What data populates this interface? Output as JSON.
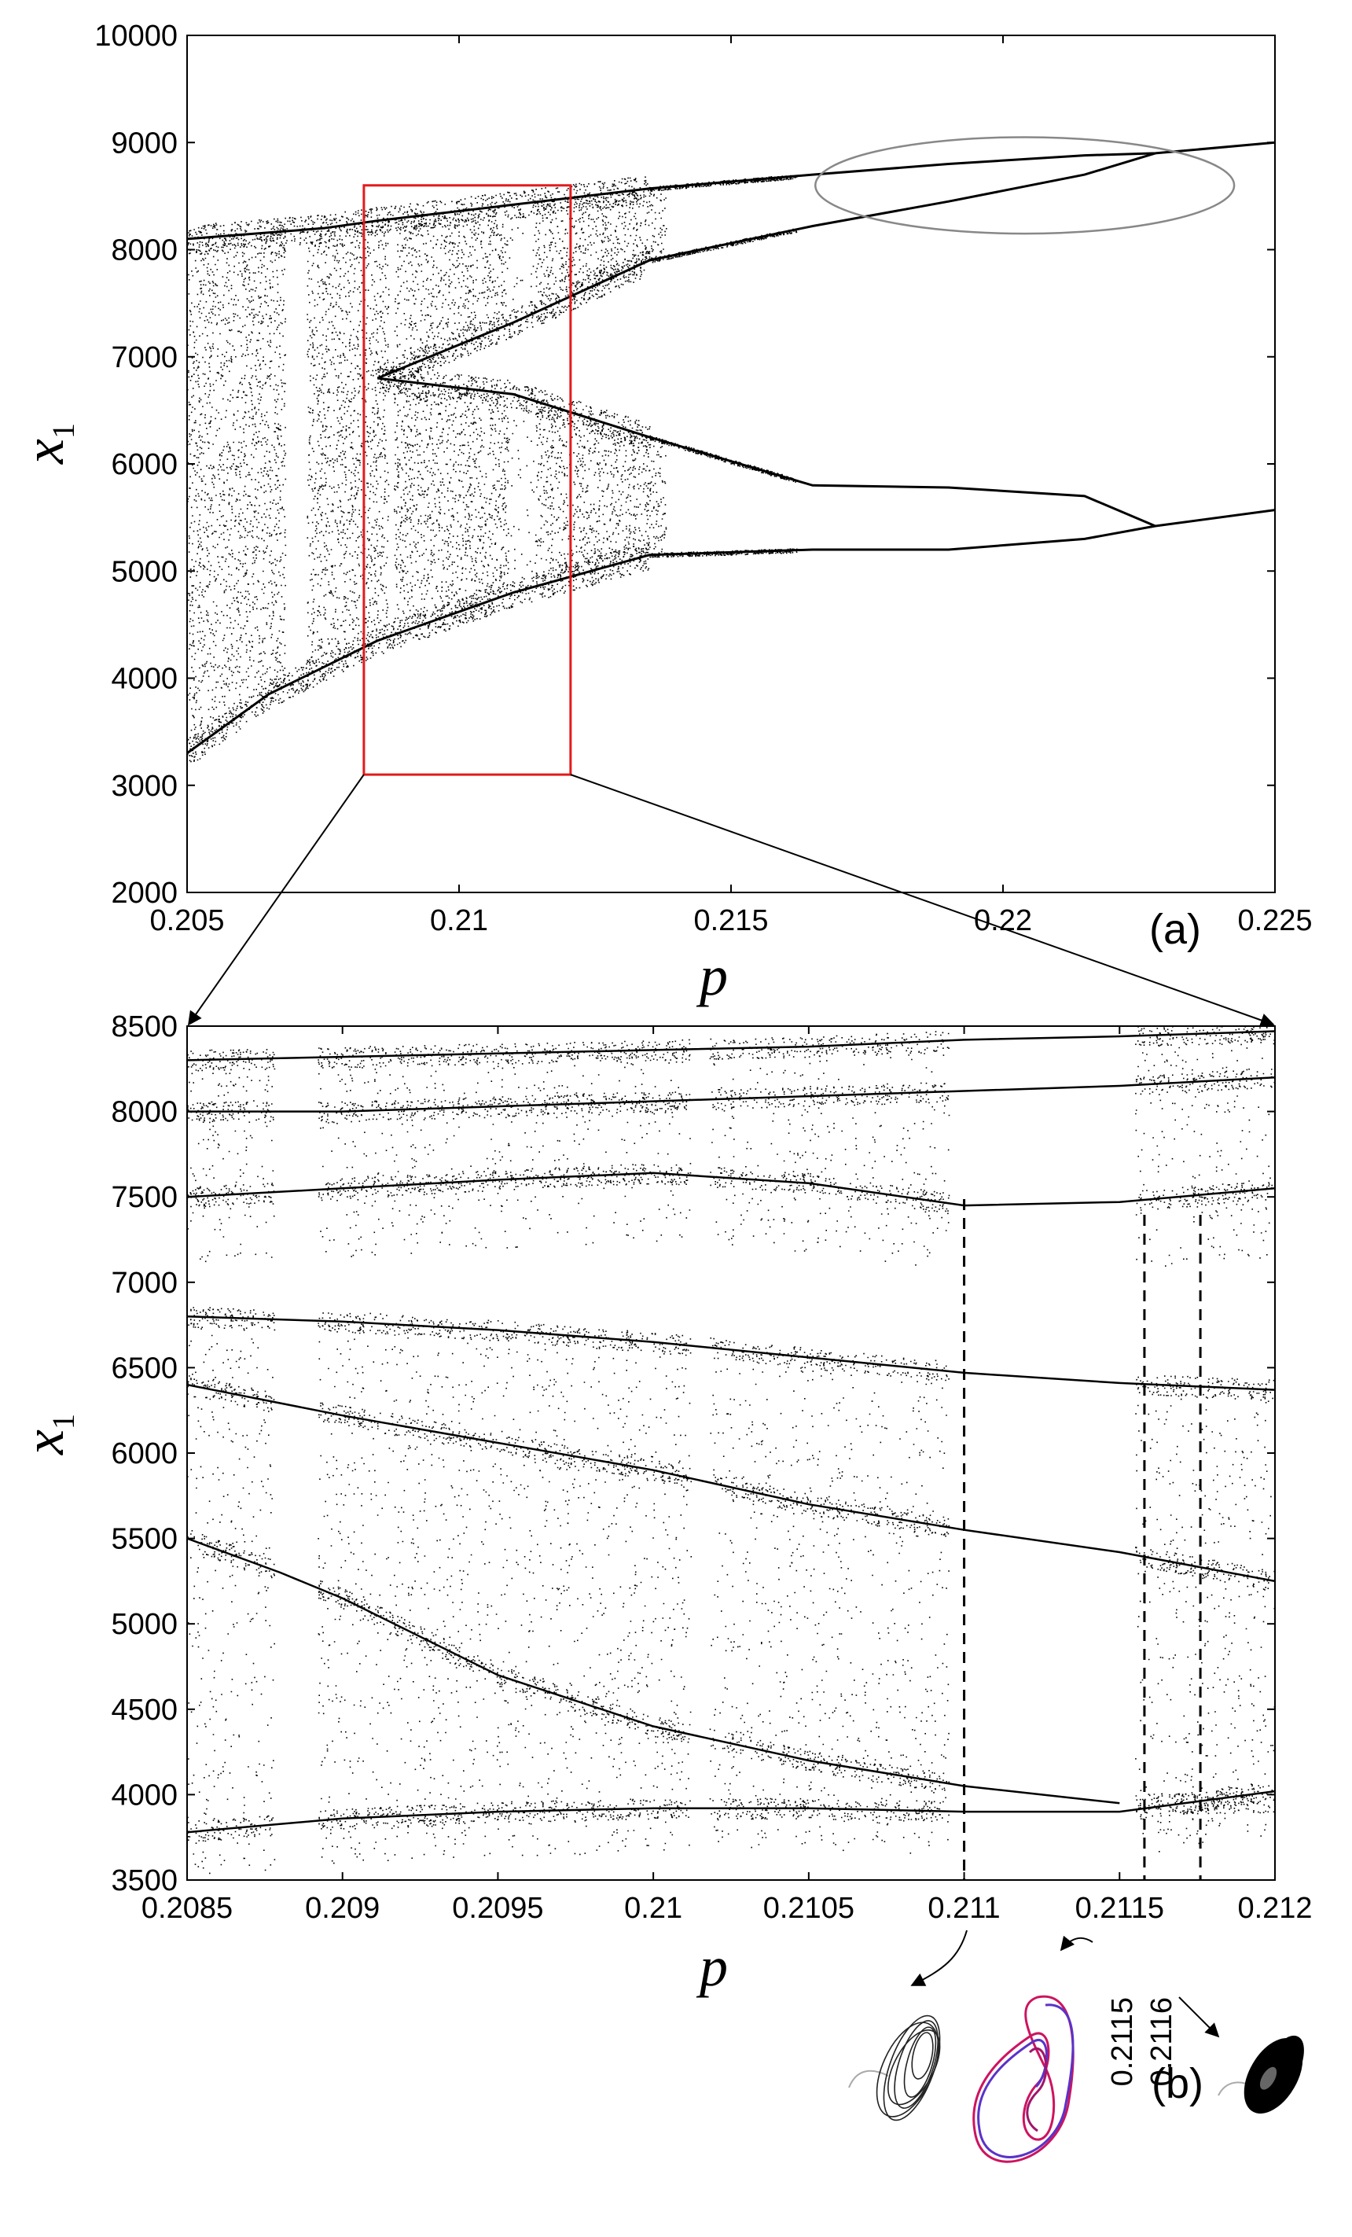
{
  "chart_data": [
    {
      "type": "scatter",
      "panel_label": "(a)",
      "xlabel": "p",
      "ylabel_main": "x",
      "ylabel_sub": "1",
      "xlim": [
        0.205,
        0.225
      ],
      "ylim": [
        2000,
        10000
      ],
      "xticks": [
        0.205,
        0.21,
        0.215,
        0.22,
        0.225
      ],
      "xtick_labels": [
        "0.205",
        "0.21",
        "0.215",
        "0.22",
        "0.225"
      ],
      "yticks": [
        2000,
        3000,
        4000,
        5000,
        6000,
        7000,
        8000,
        9000,
        10000
      ],
      "ytick_labels": [
        "2000",
        "3000",
        "4000",
        "5000",
        "6000",
        "7000",
        "8000",
        "9000",
        "10000"
      ],
      "branches": [
        {
          "x": [
            0.205,
            0.2065,
            0.2085,
            0.211,
            0.2135,
            0.2165,
            0.219,
            0.2215,
            0.2228,
            0.225
          ],
          "y": [
            3300,
            3850,
            4350,
            4800,
            5150,
            5200,
            5200,
            5300,
            5420,
            5570
          ]
        },
        {
          "x": [
            0.2085,
            0.211,
            0.2135,
            0.2165,
            0.219,
            0.2215,
            0.2228
          ],
          "y": [
            6800,
            6650,
            6250,
            5800,
            5780,
            5700,
            5420
          ]
        },
        {
          "x": [
            0.205,
            0.2075,
            0.2085,
            0.211,
            0.2135,
            0.2165,
            0.219,
            0.2215,
            0.2228,
            0.225
          ],
          "y": [
            8100,
            8200,
            8270,
            8420,
            8570,
            8700,
            8800,
            8880,
            8900,
            9000
          ]
        },
        {
          "x": [
            0.2085,
            0.211,
            0.2135,
            0.2165,
            0.219,
            0.2215,
            0.2228
          ],
          "y": [
            6800,
            7320,
            7900,
            8220,
            8450,
            8700,
            8900
          ]
        }
      ],
      "zoom_box": {
        "x": [
          0.20825,
          0.21205
        ],
        "y": [
          3100,
          8600
        ]
      },
      "highlight_ellipse": {
        "center": [
          0.2204,
          8600
        ],
        "rx": 0.00385,
        "ry": 450
      }
    },
    {
      "type": "scatter",
      "panel_label": "(b)",
      "xlabel": "p",
      "ylabel_main": "x",
      "ylabel_sub": "1",
      "xlim": [
        0.2085,
        0.212
      ],
      "ylim": [
        3500,
        8500
      ],
      "xticks": [
        0.2085,
        0.209,
        0.2095,
        0.21,
        0.2105,
        0.211,
        0.2115,
        0.212
      ],
      "xtick_labels": [
        "0.2085",
        "0.209",
        "0.2095",
        "0.21",
        "0.2105",
        "0.211",
        "0.2115",
        "0.212"
      ],
      "yticks": [
        3500,
        4000,
        4500,
        5000,
        5500,
        6000,
        6500,
        7000,
        7500,
        8000,
        8500
      ],
      "ytick_labels": [
        "3500",
        "4000",
        "4500",
        "5000",
        "5500",
        "6000",
        "6500",
        "7000",
        "7500",
        "8000",
        "8500"
      ],
      "dashed_lines": [
        0.211,
        0.21158,
        0.21176
      ],
      "dashed_line_labels": [
        "0.2115",
        "0.2116"
      ],
      "periodic_windows": [
        {
          "x": [
            0.20878,
            0.20892
          ]
        },
        {
          "x": [
            0.21012,
            0.21018
          ]
        },
        {
          "x": [
            0.21095,
            0.21155
          ]
        }
      ],
      "branches": [
        {
          "x": [
            0.2085,
            0.209,
            0.2095,
            0.21,
            0.2105,
            0.211,
            0.2115,
            0.212
          ],
          "y": [
            6800,
            6770,
            6720,
            6650,
            6560,
            6470,
            6410,
            6370
          ]
        },
        {
          "x": [
            0.2085,
            0.209,
            0.2095,
            0.21,
            0.2105,
            0.211,
            0.2115,
            0.212
          ],
          "y": [
            6400,
            6220,
            6060,
            5900,
            5700,
            5550,
            5420,
            5250
          ]
        },
        {
          "x": [
            0.2085,
            0.2088,
            0.209,
            0.2095,
            0.21,
            0.2105,
            0.211,
            0.2115
          ],
          "y": [
            5500,
            5300,
            5150,
            4700,
            4400,
            4200,
            4050,
            3950
          ]
        },
        {
          "x": [
            0.2085,
            0.209,
            0.2095,
            0.21,
            0.2105,
            0.211,
            0.2115,
            0.212
          ],
          "y": [
            3780,
            3860,
            3900,
            3920,
            3920,
            3900,
            3900,
            4020
          ]
        },
        {
          "x": [
            0.2085,
            0.209,
            0.2095,
            0.21,
            0.2105,
            0.211,
            0.2115,
            0.212
          ],
          "y": [
            7500,
            7550,
            7600,
            7640,
            7580,
            7450,
            7470,
            7550
          ]
        },
        {
          "x": [
            0.2085,
            0.209,
            0.2095,
            0.21,
            0.2105,
            0.211,
            0.2115,
            0.212
          ],
          "y": [
            8000,
            8000,
            8030,
            8060,
            8090,
            8120,
            8150,
            8200
          ]
        },
        {
          "x": [
            0.2085,
            0.209,
            0.2095,
            0.21,
            0.2105,
            0.211,
            0.2115,
            0.212
          ],
          "y": [
            8300,
            8320,
            8340,
            8360,
            8380,
            8420,
            8440,
            8470
          ]
        }
      ],
      "insets": [
        "chaotic attractor (0.211)",
        "periodic orbit (0.2115)",
        "chaotic attractor (0.2116)"
      ]
    }
  ]
}
